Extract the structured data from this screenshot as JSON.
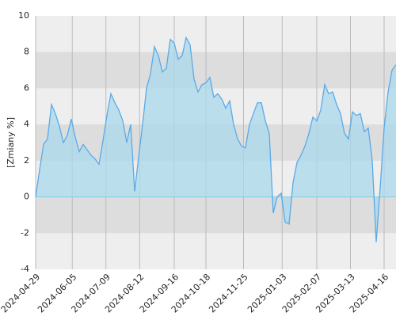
{
  "chart_data": {
    "type": "area",
    "y_label": "[Zmiany %]",
    "x": [
      "2024-04-29",
      "2024-05-03",
      "2024-05-07",
      "2024-05-11",
      "2024-05-15",
      "2024-05-19",
      "2024-05-23",
      "2024-05-27",
      "2024-05-31",
      "2024-06-04",
      "2024-06-08",
      "2024-06-12",
      "2024-06-16",
      "2024-06-20",
      "2024-06-24",
      "2024-06-28",
      "2024-07-02",
      "2024-07-06",
      "2024-07-10",
      "2024-07-14",
      "2024-07-18",
      "2024-07-22",
      "2024-07-26",
      "2024-07-30",
      "2024-08-03",
      "2024-08-07",
      "2024-08-11",
      "2024-08-15",
      "2024-08-19",
      "2024-08-23",
      "2024-08-27",
      "2024-08-31",
      "2024-09-04",
      "2024-09-08",
      "2024-09-12",
      "2024-09-16",
      "2024-09-20",
      "2024-09-24",
      "2024-09-28",
      "2024-10-02",
      "2024-10-06",
      "2024-10-10",
      "2024-10-14",
      "2024-10-18",
      "2024-10-22",
      "2024-10-26",
      "2024-10-30",
      "2024-11-03",
      "2024-11-07",
      "2024-11-11",
      "2024-11-15",
      "2024-11-19",
      "2024-11-23",
      "2024-11-27",
      "2024-12-01",
      "2024-12-05",
      "2024-12-09",
      "2024-12-13",
      "2024-12-17",
      "2024-12-21",
      "2024-12-25",
      "2024-12-29",
      "2025-01-02",
      "2025-01-06",
      "2025-01-10",
      "2025-01-14",
      "2025-01-18",
      "2025-01-22",
      "2025-01-26",
      "2025-01-30",
      "2025-02-03",
      "2025-02-07",
      "2025-02-11",
      "2025-02-15",
      "2025-02-19",
      "2025-02-23",
      "2025-02-27",
      "2025-03-03",
      "2025-03-07",
      "2025-03-11",
      "2025-03-15",
      "2025-03-19",
      "2025-03-23",
      "2025-03-27",
      "2025-03-31",
      "2025-04-04",
      "2025-04-08",
      "2025-04-12",
      "2025-04-16",
      "2025-04-20",
      "2025-04-24",
      "2025-04-28"
    ],
    "values": [
      0,
      1.5,
      2.9,
      3.2,
      5.1,
      4.6,
      3.9,
      3.0,
      3.4,
      4.3,
      3.3,
      2.5,
      2.9,
      2.6,
      2.3,
      2.1,
      1.8,
      3.1,
      4.5,
      5.7,
      5.2,
      4.8,
      4.2,
      3.0,
      4.0,
      0.3,
      2.2,
      4.0,
      6.0,
      6.8,
      8.3,
      7.8,
      6.9,
      7.1,
      8.7,
      8.5,
      7.6,
      7.8,
      8.8,
      8.4,
      6.5,
      5.8,
      6.2,
      6.3,
      6.6,
      5.5,
      5.7,
      5.4,
      4.9,
      5.3,
      4.0,
      3.2,
      2.8,
      2.7,
      4.0,
      4.6,
      5.2,
      5.2,
      4.2,
      3.5,
      -0.9,
      0.0,
      0.2,
      -1.4,
      -1.5,
      0.8,
      1.9,
      2.3,
      2.8,
      3.5,
      4.4,
      4.2,
      4.8,
      6.2,
      5.7,
      5.8,
      5.1,
      4.6,
      3.5,
      3.2,
      4.7,
      4.5,
      4.6,
      3.6,
      3.8,
      2.0,
      -2.5,
      0.5,
      3.8,
      5.8,
      7.0,
      7.3
    ],
    "color": "#5aaae8",
    "fill": "#a9d8ec",
    "xlim": [
      "2024-04-29",
      "2025-04-28"
    ],
    "xticks": [
      "2024-04-29",
      "2024-06-05",
      "2024-07-09",
      "2024-08-12",
      "2024-09-16",
      "2024-10-18",
      "2024-11-25",
      "2025-01-03",
      "2025-02-07",
      "2025-03-13",
      "2025-04-16"
    ],
    "ylim": [
      -4,
      10
    ],
    "yticks": [
      -4,
      -2,
      0,
      2,
      4,
      6,
      8,
      10
    ],
    "grid": true
  }
}
